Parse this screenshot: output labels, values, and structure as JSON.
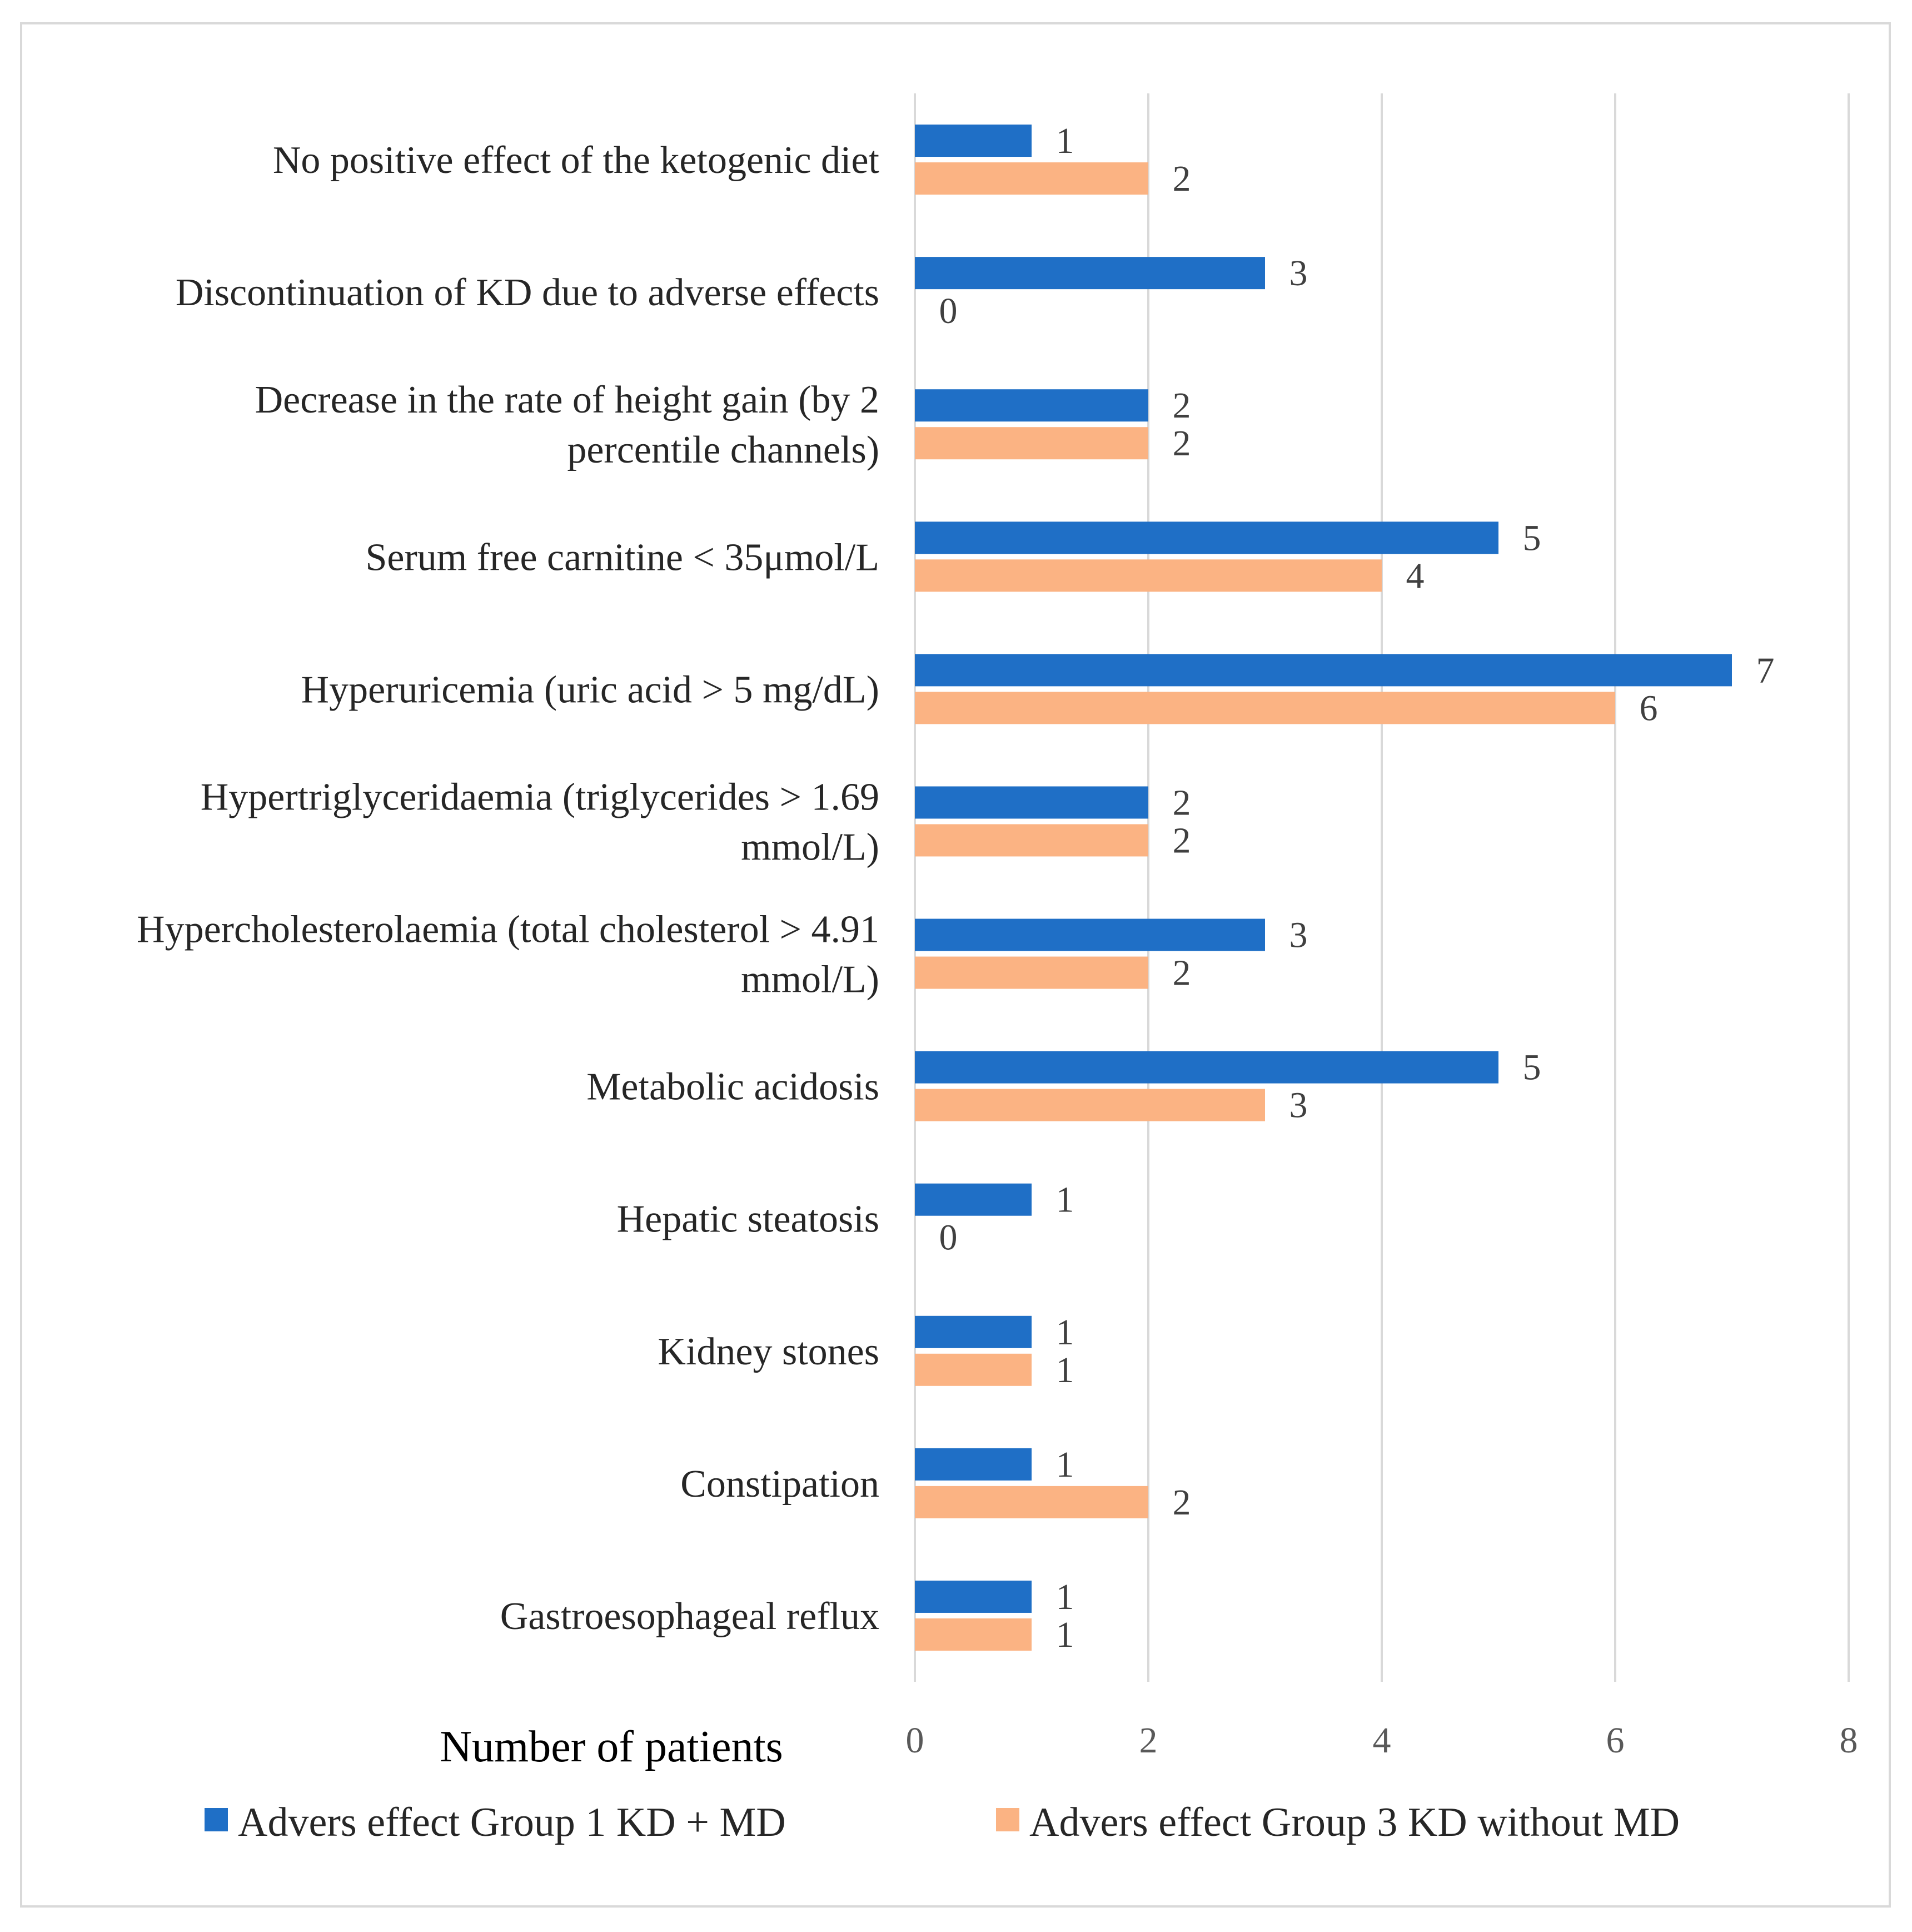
{
  "chart_data": {
    "type": "bar",
    "orientation": "horizontal",
    "categories": [
      "No positive effect of the ketogenic diet",
      "Discontinuation of KD due to adverse effects",
      "Decrease in the rate of height gain (by 2 percentile channels)",
      "Serum free carnitine < 35μmol/L",
      "Hyperuricemia (uric acid > 5 mg/dL)",
      "Hypertriglyceridaemia (triglycerides > 1.69 mmol/L)",
      "Hypercholesterolaemia (total cholesterol > 4.91 mmol/L)",
      "Metabolic acidosis",
      "Hepatic steatosis",
      "Kidney stones",
      "Constipation",
      "Gastroesophageal reflux"
    ],
    "category_lines": [
      [
        "No positive effect of the ketogenic diet"
      ],
      [
        "Discontinuation of KD due to adverse effects"
      ],
      [
        "Decrease in the rate of height gain (by 2",
        "percentile channels)"
      ],
      [
        "Serum free carnitine < 35μmol/L"
      ],
      [
        "Hyperuricemia (uric acid > 5 mg/dL)"
      ],
      [
        "Hypertriglyceridaemia (triglycerides > 1.69",
        "mmol/L)"
      ],
      [
        "Hypercholesterolaemia (total cholesterol > 4.91",
        "mmol/L)"
      ],
      [
        "Metabolic acidosis"
      ],
      [
        "Hepatic steatosis"
      ],
      [
        "Kidney stones"
      ],
      [
        "Constipation"
      ],
      [
        "Gastroesophageal reflux"
      ]
    ],
    "series": [
      {
        "name": "Advers effect Group 1 KD + MD",
        "color": "#1f6fc6",
        "values": [
          1,
          3,
          2,
          5,
          7,
          2,
          3,
          5,
          1,
          1,
          1,
          1
        ]
      },
      {
        "name": "Advers effect Group 3 KD without MD",
        "color": "#fbb383",
        "values": [
          2,
          0,
          2,
          4,
          6,
          2,
          2,
          3,
          0,
          1,
          2,
          1
        ]
      }
    ],
    "xlabel": "Number of patients",
    "xlim": [
      0,
      8
    ],
    "xticks": [
      0,
      2,
      4,
      6,
      8
    ],
    "grid": "vertical",
    "legend": "bottom"
  }
}
